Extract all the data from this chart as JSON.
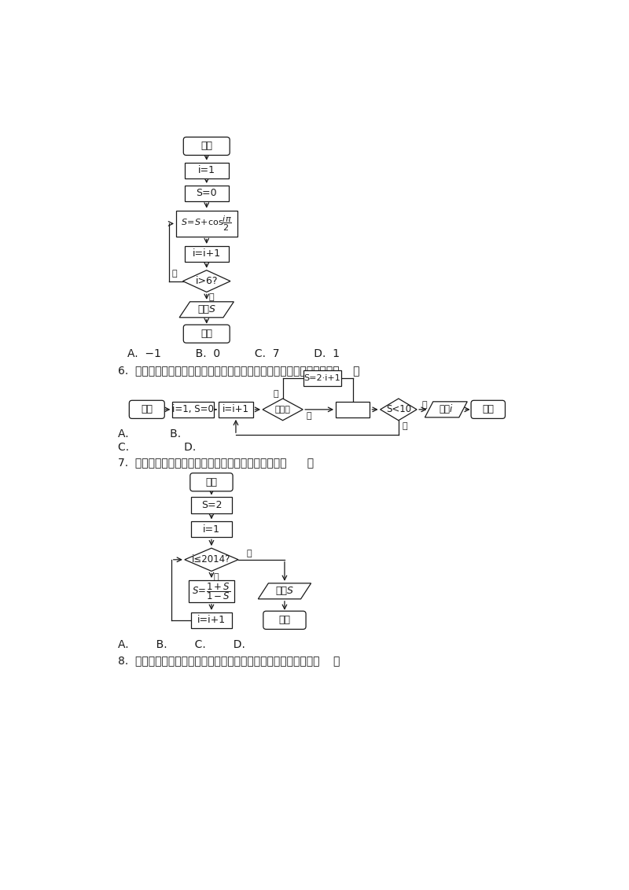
{
  "bg_color": "#f5f5f5",
  "page_bg": "#ffffff",
  "text_color": "#1a1a1a",
  "line_color": "#1a1a1a",
  "answer_line1": "A.  -1        B. 0        C. 7        D. 1",
  "q6_text": "6. 阅读如下程序框图，如果输出，那么在空白矩形框中应填入的语句为（   ）",
  "q6_ans": "A.        B.",
  "q6_ans2": "C.            D.",
  "q7_text": "7. 某程序框图如图所示，该程序运行后输出的的值是（    ）",
  "q7_ans": "A.    B.    C.    D.",
  "q8_text": "8. 如果执行如图所示的程序框图，输入正整数和实数，输出，则（   ）"
}
